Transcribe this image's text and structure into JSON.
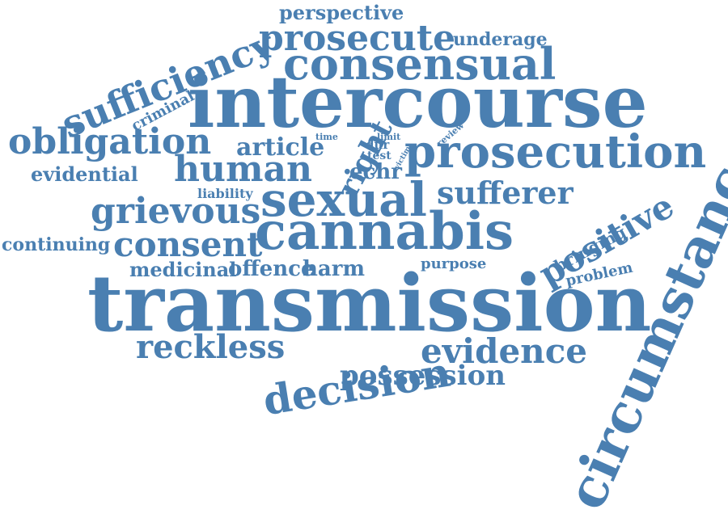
{
  "colors": {
    "word": "#4a7fb1",
    "background": "#ffffff"
  },
  "words": {
    "perspective": "perspective",
    "prosecute": "prosecute",
    "underage": "underage",
    "sufficiency": "sufficiency",
    "consensual": "consensual",
    "intercourse": "intercourse",
    "criminal": "criminal",
    "obligation": "obligation",
    "evidential": "evidential",
    "time": "time",
    "limit": "limit",
    "review": "review",
    "dur": "dur",
    "test": "test",
    "victim": "victim",
    "article": "article",
    "right": "right",
    "human": "human",
    "echr": "echr",
    "prosecution": "prosecution",
    "liability": "liability",
    "grievous": "grievous",
    "sexual": "sexual",
    "sufferer": "sufferer",
    "positive": "positive",
    "continuing": "continuing",
    "consent": "consent",
    "cannabis": "cannabis",
    "bringing": "bringing",
    "problem": "problem",
    "purpose": "purpose",
    "medicinal": "medicinal",
    "offence": "offence",
    "harm": "harm",
    "transmission": "transmission",
    "circumstance": "circumstance",
    "reckless": "reckless",
    "decision": "decision",
    "evidence": "evidence",
    "possession": "possession"
  }
}
